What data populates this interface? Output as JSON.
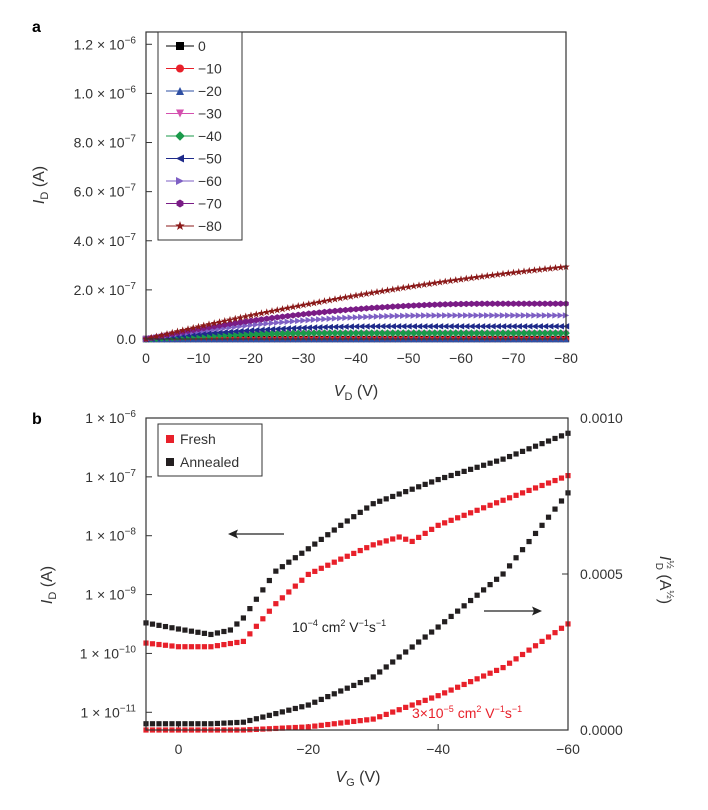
{
  "chart_data": [
    {
      "type": "line",
      "panel_label": "a",
      "xlabel_main": "V",
      "xlabel_sub": "D",
      "xlabel_unit": " (V)",
      "ylabel_main": "I",
      "ylabel_sub": "D",
      "ylabel_unit": " (A)",
      "xlim": [
        0,
        -80
      ],
      "ylim": [
        0,
        1.25e-06
      ],
      "x_ticks": [
        0,
        -10,
        -20,
        -30,
        -40,
        -50,
        -60,
        -70,
        -80
      ],
      "x_tick_labels": [
        "0",
        "−10",
        "−20",
        "−30",
        "−40",
        "−50",
        "−60",
        "−70",
        "−80"
      ],
      "y_ticks": [
        0,
        2e-07,
        4e-07,
        6e-07,
        8e-07,
        1e-06,
        1.2e-06
      ],
      "y_tick_labels": [
        {
          "mant": "0.0",
          "exp": ""
        },
        {
          "mant": "2.0 × 10",
          "exp": "−7"
        },
        {
          "mant": "4.0 × 10",
          "exp": "−7"
        },
        {
          "mant": "6.0 × 10",
          "exp": "−7"
        },
        {
          "mant": "8.0 × 10",
          "exp": "−7"
        },
        {
          "mant": "1.0 × 10",
          "exp": "−6"
        },
        {
          "mant": "1.2 × 10",
          "exp": "−6"
        }
      ],
      "legend_position": "top-left",
      "series": [
        {
          "name": "0",
          "color": "#000000",
          "marker": "square",
          "vth": 0,
          "k": 0
        },
        {
          "name": "−10",
          "color": "#e8202a",
          "marker": "circle",
          "vth": 4,
          "k": 0
        },
        {
          "name": "−20",
          "color": "#2e4fa3",
          "marker": "triangle-up",
          "vth": 4,
          "k": 0
        },
        {
          "name": "−30",
          "color": "#d44fae",
          "marker": "triangle-down",
          "vth": 4,
          "k": 3.1e-11
        },
        {
          "name": "−40",
          "color": "#1a9a4a",
          "marker": "diamond",
          "vth": 4,
          "k": 1.85e-11
        },
        {
          "name": "−50",
          "color": "#1e2a8a",
          "marker": "triangle-left",
          "vth": 4,
          "k": 2.44e-11
        },
        {
          "name": "−60",
          "color": "#7e5fc4",
          "marker": "triangle-right",
          "vth": 4,
          "k": 3.06e-11
        },
        {
          "name": "−70",
          "color": "#7a1c86",
          "marker": "hexagon",
          "vth": 4,
          "k": 3.3e-11
        },
        {
          "name": "−80",
          "color": "#8b1a1a",
          "marker": "star",
          "vth": 4,
          "k": 3.4e-11
        }
      ]
    },
    {
      "type": "scatter",
      "panel_label": "b",
      "xlabel_main": "V",
      "xlabel_sub": "G",
      "xlabel_unit": " (V)",
      "ylabel_left_main": "I",
      "ylabel_left_sub": "D",
      "ylabel_left_unit": " (A)",
      "ylabel_right_main": "I",
      "ylabel_right_sub": "D",
      "ylabel_right_sup": "½",
      "ylabel_right_unit": " (A",
      "ylabel_right_unit_sup": "½",
      "ylabel_right_close": ")",
      "xlim": [
        5,
        -60
      ],
      "ylim_left_log": [
        5e-12,
        1e-06
      ],
      "ylim_right": [
        0,
        0.001
      ],
      "x_ticks": [
        0,
        -20,
        -40,
        -60
      ],
      "x_tick_labels": [
        "0",
        "−20",
        "−40",
        "−60"
      ],
      "y_left_ticks": [
        {
          "value": 1e-11,
          "mant": "1 × 10",
          "exp": "−11"
        },
        {
          "value": 1e-10,
          "mant": "1 × 10",
          "exp": "−10"
        },
        {
          "value": 1e-09,
          "mant": "1 × 10",
          "exp": "−9"
        },
        {
          "value": 1e-08,
          "mant": "1 × 10",
          "exp": "−8"
        },
        {
          "value": 1e-07,
          "mant": "1 × 10",
          "exp": "−7"
        },
        {
          "value": 1e-06,
          "mant": "1 × 10",
          "exp": "−6"
        }
      ],
      "y_right_ticks": [
        {
          "value": 0,
          "label": "0.0000"
        },
        {
          "value": 0.0005,
          "label": "0.0005"
        },
        {
          "value": 0.001,
          "label": "0.0010"
        }
      ],
      "legend_position": "top-left",
      "series": [
        {
          "name": "Fresh",
          "color": "#e8202a",
          "marker": "square",
          "log_anchors": [
            [
              5,
              1.5e-10
            ],
            [
              0,
              1.3e-10
            ],
            [
              -5,
              1.3e-10
            ],
            [
              -10,
              1.6e-10
            ],
            [
              -15,
              7e-10
            ],
            [
              -20,
              2.2e-09
            ],
            [
              -25,
              4e-09
            ],
            [
              -30,
              7e-09
            ],
            [
              -34,
              9.5e-09
            ],
            [
              -36,
              8e-09
            ],
            [
              -40,
              1.5e-08
            ],
            [
              -50,
              4e-08
            ],
            [
              -60,
              1.05e-07
            ]
          ],
          "sqrt_anchors": [
            [
              5,
              0.0
            ],
            [
              -10,
              0.0
            ],
            [
              -20,
              1e-05
            ],
            [
              -30,
              3.5e-05
            ],
            [
              -40,
              0.00011
            ],
            [
              -50,
              0.0002
            ],
            [
              -60,
              0.00034
            ]
          ]
        },
        {
          "name": "Annealed",
          "color": "#231f20",
          "marker": "square",
          "log_anchors": [
            [
              5,
              3.3e-10
            ],
            [
              0,
              2.6e-10
            ],
            [
              -5,
              2.1e-10
            ],
            [
              -8,
              2.5e-10
            ],
            [
              -10,
              4e-10
            ],
            [
              -15,
              2.5e-09
            ],
            [
              -20,
              6e-09
            ],
            [
              -25,
              1.5e-08
            ],
            [
              -30,
              3.5e-08
            ],
            [
              -40,
              9e-08
            ],
            [
              -50,
              2e-07
            ],
            [
              -60,
              5.5e-07
            ]
          ],
          "sqrt_anchors": [
            [
              5,
              2e-05
            ],
            [
              -5,
              2e-05
            ],
            [
              -10,
              2.5e-05
            ],
            [
              -20,
              8e-05
            ],
            [
              -30,
              0.00017
            ],
            [
              -40,
              0.00033
            ],
            [
              -50,
              0.0005
            ],
            [
              -60,
              0.00076
            ]
          ]
        }
      ],
      "annotations": {
        "mobility_annealed_mant": "10",
        "mobility_annealed_exp": "−4",
        "mobility_annealed_units": " cm",
        "mobility_annealed_units_exp": "2",
        "mobility_annealed_tail": " V",
        "mobility_annealed_tail_exp": "−1",
        "mobility_annealed_tail2": "s",
        "mobility_annealed_tail2_exp": "−1",
        "mobility_fresh_mant": "3×10",
        "mobility_fresh_exp": "−5",
        "mobility_fresh_units": " cm",
        "mobility_fresh_units_exp": "2",
        "mobility_fresh_tail": " V",
        "mobility_fresh_tail_exp": "−1",
        "mobility_fresh_tail2": "s",
        "mobility_fresh_tail2_exp": "−1",
        "annot_fresh_color": "#e8202a"
      }
    }
  ]
}
